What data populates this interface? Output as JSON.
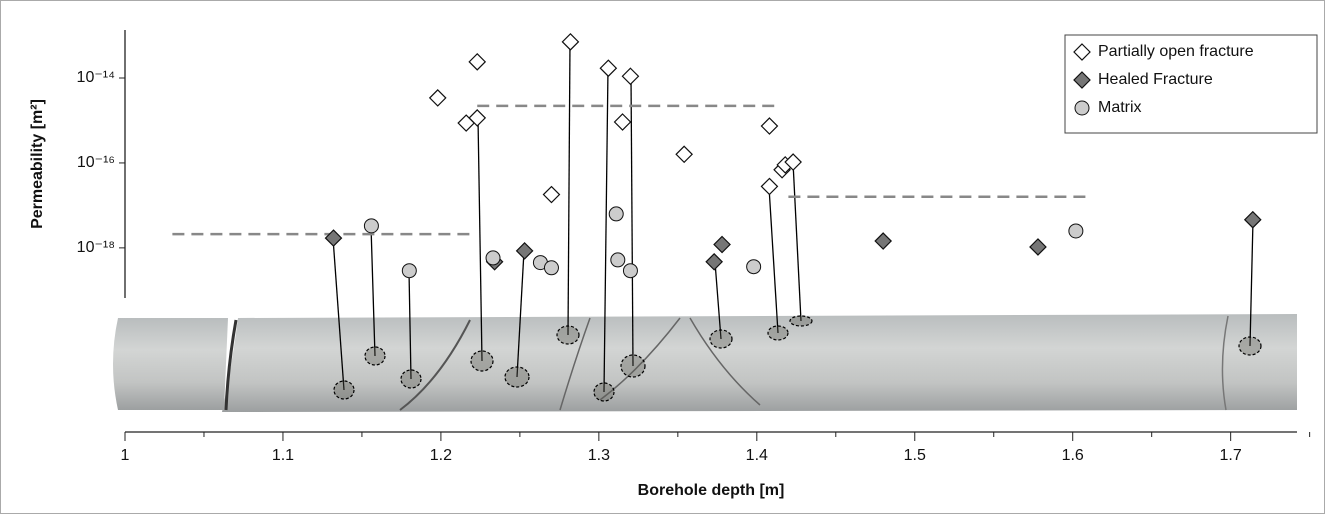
{
  "chart_data": {
    "type": "scatter",
    "xlabel": "Borehole depth [m]",
    "ylabel": "Permeability [m²]",
    "xlim": [
      1,
      1.742
    ],
    "xticks": [
      1,
      1.1,
      1.2,
      1.3,
      1.4,
      1.5,
      1.6,
      1.7
    ],
    "xminorticks": [
      1.05,
      1.15,
      1.25,
      1.35,
      1.45,
      1.55,
      1.65,
      1.75
    ],
    "ylim": [
      6.6e-20,
      1.35e-13
    ],
    "ylog": true,
    "yticks": [
      {
        "value": 1e-18,
        "label": "10⁻¹⁸"
      },
      {
        "value": 1e-16,
        "label": "10⁻¹⁶"
      },
      {
        "value": 1e-14,
        "label": "10⁻¹⁴"
      }
    ],
    "legend": "upper right",
    "series": [
      {
        "name": "Partially open fracture",
        "marker": "diamond",
        "color": "#ffffff",
        "x": [
          1.198,
          1.216,
          1.223,
          1.223,
          1.27,
          1.282,
          1.306,
          1.315,
          1.32,
          1.354,
          1.408,
          1.408,
          1.416,
          1.418,
          1.423
        ],
        "values": [
          3.4e-15,
          8.7e-16,
          1.15e-15,
          2.4e-14,
          1.8e-17,
          7.1e-14,
          1.7e-14,
          9.2e-16,
          1.1e-14,
          1.6e-16,
          7.4e-16,
          2.8e-17,
          6.9e-17,
          9e-17,
          1.05e-16
        ]
      },
      {
        "name": "Healed Fracture",
        "marker": "diamond",
        "color": "#767676",
        "x": [
          1.132,
          1.234,
          1.253,
          1.373,
          1.378,
          1.48,
          1.578,
          1.714
        ],
        "values": [
          1.7e-18,
          4.7e-19,
          8.5e-19,
          4.7e-19,
          1.2e-18,
          1.45e-18,
          1.05e-18,
          4.6e-18
        ]
      },
      {
        "name": "Matrix",
        "marker": "circle",
        "color": "#cccccc",
        "x": [
          1.156,
          1.18,
          1.233,
          1.263,
          1.27,
          1.311,
          1.312,
          1.32,
          1.398,
          1.602
        ],
        "values": [
          3.3e-18,
          2.9e-19,
          5.8e-19,
          4.5e-19,
          3.4e-19,
          6.3e-18,
          5.2e-19,
          2.9e-19,
          3.6e-19,
          2.5e-18
        ]
      }
    ],
    "mean_lines": {
      "color": "#888888",
      "lines": [
        {
          "x": [
            1.03,
            1.221
          ],
          "value": 2.1e-18
        },
        {
          "x": [
            1.223,
            1.415
          ],
          "value": 2.2e-15
        },
        {
          "x": [
            1.42,
            1.609
          ],
          "value": 1.6e-17
        }
      ]
    }
  }
}
